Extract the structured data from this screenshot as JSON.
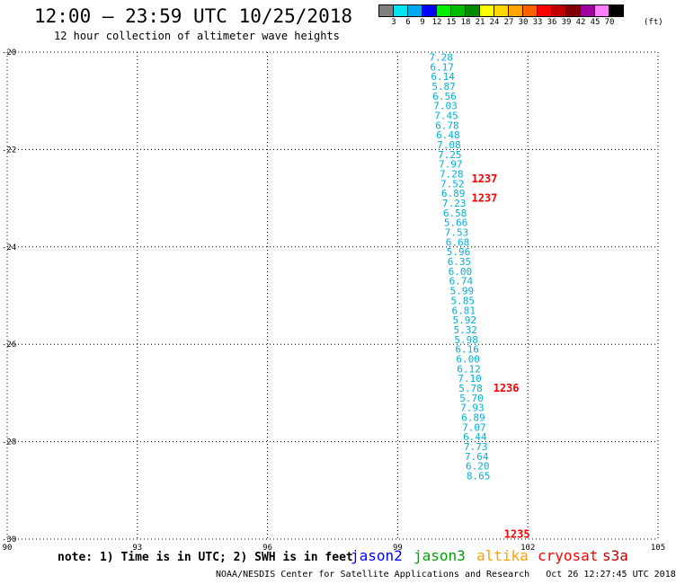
{
  "header": {
    "title": "12:00 — 23:59 UTC 10/25/2018",
    "subtitle": "12 hour collection of altimeter wave heights"
  },
  "colorbar": {
    "labels": [
      "3",
      "6",
      "9",
      "12",
      "15",
      "18",
      "21",
      "24",
      "27",
      "30",
      "33",
      "36",
      "39",
      "42",
      "45",
      "70"
    ],
    "unit": "(ft)",
    "colors": [
      "#808080",
      "#00e5ee",
      "#00a8f0",
      "#0000ff",
      "#00ee00",
      "#00bb00",
      "#008a00",
      "#ffff00",
      "#ffd700",
      "#ffa500",
      "#ff6000",
      "#ff0000",
      "#c00000",
      "#800000",
      "#a000a0",
      "#ff80ff",
      "#000000"
    ]
  },
  "footer": {
    "note": "note: 1) Time is in UTC; 2) SWH is in feet",
    "satellites": [
      {
        "name": "jason2",
        "color": "#0000ff"
      },
      {
        "name": "jason3",
        "color": "#00a000"
      },
      {
        "name": "altika",
        "color": "#ffa000"
      },
      {
        "name": "cryosat",
        "color": "#ff0000"
      },
      {
        "name": "s3a",
        "color": "#c00000"
      }
    ],
    "credit": "NOAA/NESDIS Center for Satellite Applications and Research   Oct 26 12:27:45 UTC 2018"
  },
  "chart_data": {
    "type": "scatter",
    "xlim": [
      90,
      105
    ],
    "ylim": [
      -30,
      -20
    ],
    "xticks": [
      "90",
      "93",
      "96",
      "99",
      "102",
      "105"
    ],
    "yticks": [
      "-20",
      "-22",
      "-24",
      "-26",
      "-28",
      "-30"
    ],
    "grid": true,
    "wave_heights": [
      {
        "lon": 100.0,
        "lat": -20.1,
        "label": "7.28"
      },
      {
        "lon": 100.02,
        "lat": -20.3,
        "label": "6.17"
      },
      {
        "lon": 100.04,
        "lat": -20.5,
        "label": "6.14"
      },
      {
        "lon": 100.06,
        "lat": -20.7,
        "label": "5.87"
      },
      {
        "lon": 100.08,
        "lat": -20.9,
        "label": "6.56"
      },
      {
        "lon": 100.1,
        "lat": -21.1,
        "label": "7.03"
      },
      {
        "lon": 100.12,
        "lat": -21.3,
        "label": "7.45"
      },
      {
        "lon": 100.14,
        "lat": -21.5,
        "label": "6.78"
      },
      {
        "lon": 100.16,
        "lat": -21.7,
        "label": "6.48"
      },
      {
        "lon": 100.18,
        "lat": -21.9,
        "label": "7.08"
      },
      {
        "lon": 100.2,
        "lat": -22.1,
        "label": "7.25"
      },
      {
        "lon": 100.22,
        "lat": -22.3,
        "label": "7.97"
      },
      {
        "lon": 100.24,
        "lat": -22.5,
        "label": "7.28"
      },
      {
        "lon": 100.26,
        "lat": -22.7,
        "label": "7.52"
      },
      {
        "lon": 100.28,
        "lat": -22.9,
        "label": "6.89"
      },
      {
        "lon": 100.3,
        "lat": -23.1,
        "label": "7.23"
      },
      {
        "lon": 100.32,
        "lat": -23.3,
        "label": "6.58"
      },
      {
        "lon": 100.34,
        "lat": -23.5,
        "label": "5.66"
      },
      {
        "lon": 100.36,
        "lat": -23.7,
        "label": "7.53"
      },
      {
        "lon": 100.38,
        "lat": -23.9,
        "label": "6.68"
      },
      {
        "lon": 100.4,
        "lat": -24.1,
        "label": "5.96"
      },
      {
        "lon": 100.42,
        "lat": -24.3,
        "label": "6.35"
      },
      {
        "lon": 100.44,
        "lat": -24.5,
        "label": "6.00"
      },
      {
        "lon": 100.46,
        "lat": -24.7,
        "label": "6.74"
      },
      {
        "lon": 100.48,
        "lat": -24.9,
        "label": "5.99"
      },
      {
        "lon": 100.5,
        "lat": -25.1,
        "label": "5.85"
      },
      {
        "lon": 100.52,
        "lat": -25.3,
        "label": "6.81"
      },
      {
        "lon": 100.54,
        "lat": -25.5,
        "label": "5.92"
      },
      {
        "lon": 100.56,
        "lat": -25.7,
        "label": "5.32"
      },
      {
        "lon": 100.58,
        "lat": -25.9,
        "label": "5.98"
      },
      {
        "lon": 100.6,
        "lat": -26.1,
        "label": "6.16"
      },
      {
        "lon": 100.62,
        "lat": -26.3,
        "label": "6.00"
      },
      {
        "lon": 100.64,
        "lat": -26.5,
        "label": "6.12"
      },
      {
        "lon": 100.66,
        "lat": -26.7,
        "label": "7.10"
      },
      {
        "lon": 100.68,
        "lat": -26.9,
        "label": "5.78"
      },
      {
        "lon": 100.7,
        "lat": -27.1,
        "label": "5.70"
      },
      {
        "lon": 100.72,
        "lat": -27.3,
        "label": "7.93"
      },
      {
        "lon": 100.74,
        "lat": -27.5,
        "label": "6.89"
      },
      {
        "lon": 100.76,
        "lat": -27.7,
        "label": "7.07"
      },
      {
        "lon": 100.78,
        "lat": -27.9,
        "label": "6.44"
      },
      {
        "lon": 100.8,
        "lat": -28.1,
        "label": "7.73"
      },
      {
        "lon": 100.82,
        "lat": -28.3,
        "label": "7.64"
      },
      {
        "lon": 100.84,
        "lat": -28.5,
        "label": "6.20"
      },
      {
        "lon": 100.86,
        "lat": -28.7,
        "label": "8.65"
      }
    ],
    "time_labels": [
      {
        "lon": 101.0,
        "lat": -22.6,
        "label": "1237"
      },
      {
        "lon": 101.0,
        "lat": -23.0,
        "label": "1237"
      },
      {
        "lon": 101.5,
        "lat": -26.9,
        "label": "1236"
      },
      {
        "lon": 101.75,
        "lat": -29.9,
        "label": "1235"
      }
    ]
  }
}
